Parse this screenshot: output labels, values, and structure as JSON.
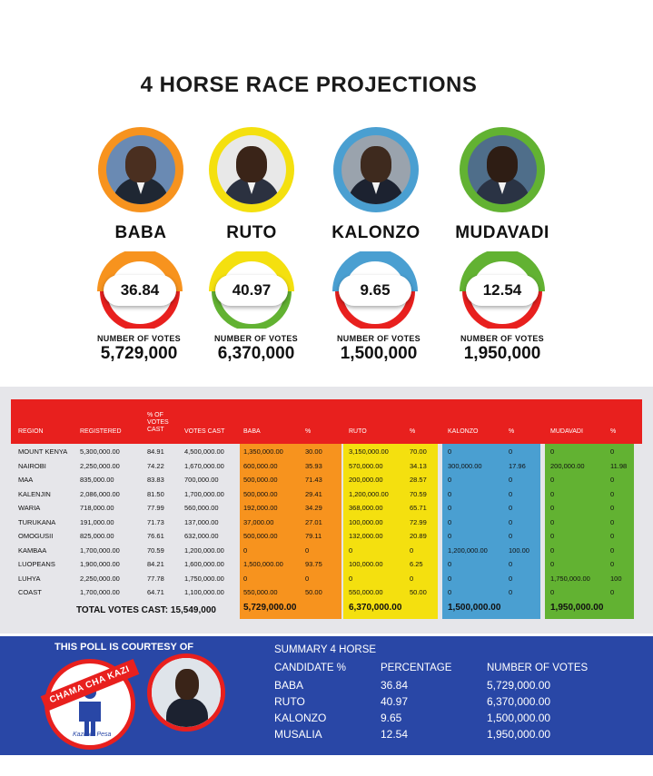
{
  "title": "4 HORSE RACE PROJECTIONS",
  "candidates": [
    {
      "name": "BABA",
      "percent": "36.84",
      "votes_label": "NUMBER OF VOTES",
      "votes": "5,729,000",
      "color": "#f7931e"
    },
    {
      "name": "RUTO",
      "percent": "40.97",
      "votes_label": "NUMBER OF VOTES",
      "votes": "6,370,000",
      "color": "#f4e00f"
    },
    {
      "name": "KALONZO",
      "percent": "9.65",
      "votes_label": "NUMBER OF VOTES",
      "votes": "1,500,000",
      "color": "#4a9fd1"
    },
    {
      "name": "MUDAVADI",
      "percent": "12.54",
      "votes_label": "NUMBER OF VOTES",
      "votes": "1,950,000",
      "color": "#62b232"
    }
  ],
  "colors": {
    "red": "#e8201e",
    "orange": "#f7931e",
    "yellow": "#f4e00f",
    "blue": "#4a9fd1",
    "green": "#62b232",
    "navy": "#2947a6"
  },
  "table": {
    "headers": {
      "region": "REGION",
      "registered": "REGISTERED",
      "pct_cast": "% OF\nVOTES\nCAST",
      "votes_cast": "VOTES CAST",
      "baba": "BABA",
      "baba_pct": "%",
      "ruto": "RUTO",
      "ruto_pct": "%",
      "kalonzo": "KALONZO",
      "kalonzo_pct": "%",
      "mudavadi": "MUDAVADI",
      "mudavadi_pct": "%"
    },
    "rows": [
      [
        "MOUNT KENYA",
        "5,300,000.00",
        "84.91",
        "4,500,000.00",
        "1,350,000.00",
        "30.00",
        "3,150,000.00",
        "70.00",
        "0",
        "0",
        "0",
        "0"
      ],
      [
        "NAIROBI",
        "2,250,000.00",
        "74.22",
        "1,670,000.00",
        "600,000.00",
        "35.93",
        "570,000.00",
        "34.13",
        "300,000.00",
        "17.96",
        "200,000.00",
        "11.98"
      ],
      [
        "MAA",
        "835,000.00",
        "83.83",
        "700,000.00",
        "500,000.00",
        "71.43",
        "200,000.00",
        "28.57",
        "0",
        "0",
        "0",
        "0"
      ],
      [
        "KALENJIN",
        "2,086,000.00",
        "81.50",
        "1,700,000.00",
        "500,000.00",
        "29.41",
        "1,200,000.00",
        "70.59",
        "0",
        "0",
        "0",
        "0"
      ],
      [
        "WARIA",
        "718,000.00",
        "77.99",
        "560,000.00",
        "192,000.00",
        "34.29",
        "368,000.00",
        "65.71",
        "0",
        "0",
        "0",
        "0"
      ],
      [
        "TURUKANA",
        "191,000.00",
        "71.73",
        "137,000.00",
        "37,000.00",
        "27.01",
        "100,000.00",
        "72.99",
        "0",
        "0",
        "0",
        "0"
      ],
      [
        "OMOGUSII",
        "825,000.00",
        "76.61",
        "632,000.00",
        "500,000.00",
        "79.11",
        "132,000.00",
        "20.89",
        "0",
        "0",
        "0",
        "0"
      ],
      [
        "KAMBAA",
        "1,700,000.00",
        "70.59",
        "1,200,000.00",
        "0",
        "0",
        "0",
        "0",
        "1,200,000.00",
        "100.00",
        "0",
        "0"
      ],
      [
        "LUOPEANS",
        "1,900,000.00",
        "84.21",
        "1,600,000.00",
        "1,500,000.00",
        "93.75",
        "100,000.00",
        "6.25",
        "0",
        "0",
        "0",
        "0"
      ],
      [
        "LUHYA",
        "2,250,000.00",
        "77.78",
        "1,750,000.00",
        "0",
        "0",
        "0",
        "0",
        "0",
        "0",
        "1,750,000.00",
        "100"
      ],
      [
        "COAST",
        "1,700,000.00",
        "64.71",
        "1,100,000.00",
        "550,000.00",
        "50.00",
        "550,000.00",
        "50.00",
        "0",
        "0",
        "0",
        "0"
      ]
    ],
    "total_label": "TOTAL VOTES CAST: 15,549,000",
    "totals": [
      "5,729,000.00",
      "6,370,000.00",
      "1,500,000.00",
      "1,950,000.00"
    ]
  },
  "footer": {
    "courtesy": "THIS POLL IS COURTESY OF",
    "logo_text": "CHAMA CHA KAZI",
    "logo_tagline": "Kazi Na Pesa",
    "summary_title": "SUMMARY 4 HORSE",
    "summary_headers": [
      "CANDIDATE %",
      "PERCENTAGE",
      "NUMBER OF VOTES"
    ],
    "summary_rows": [
      [
        "BABA",
        "36.84",
        "5,729,000.00"
      ],
      [
        "RUTO",
        "40.97",
        "6,370,000.00"
      ],
      [
        "KALONZO",
        "9.65",
        "1,500,000.00"
      ],
      [
        "MUSALIA",
        "12.54",
        "1,950,000.00"
      ]
    ]
  }
}
